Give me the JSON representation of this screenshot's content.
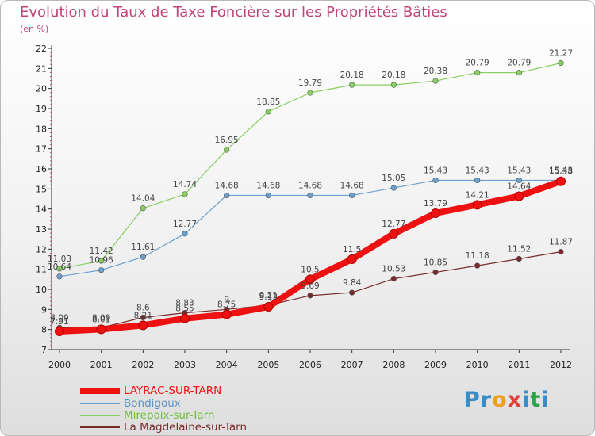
{
  "page": {
    "title": "Evolution du Taux de Taxe Foncière sur les Propriétés Bâties",
    "subtitle": "(en %)"
  },
  "logo": {
    "text": "Proxiti",
    "letter_colors": [
      "#3a8ec8",
      "#3a8ec8",
      "#f0a020",
      "#e0403a",
      "#3a8ec8",
      "#2aa24a",
      "#3a8ec8"
    ]
  },
  "chart_data": {
    "type": "line",
    "title": "Evolution du Taux de Taxe Foncière sur les Propriétés Bâties",
    "ylabel": "(en %)",
    "xlabel": "",
    "categories": [
      "2000",
      "2001",
      "2002",
      "2003",
      "2004",
      "2005",
      "2006",
      "2007",
      "2008",
      "2009",
      "2010",
      "2011",
      "2012"
    ],
    "ylim": [
      7,
      22
    ],
    "yticks": [
      7,
      8,
      9,
      10,
      11,
      12,
      13,
      14,
      15,
      16,
      17,
      18,
      19,
      20,
      21,
      22
    ],
    "grid": false,
    "series": [
      {
        "name": "La Magdelaine-sur-Tarn",
        "color": "#7a2a2a",
        "values": [
          8.09,
          8.09,
          8.6,
          8.83,
          9.0,
          9.21,
          9.69,
          9.84,
          10.53,
          10.85,
          11.18,
          11.52,
          11.87
        ],
        "labels": [
          "8.09",
          "8.09",
          "8.6",
          "8.83",
          "9",
          "9.21",
          "9.69",
          "9.84",
          "10.53",
          "10.85",
          "11.18",
          "11.52",
          "11.87"
        ]
      },
      {
        "name": "Mirepoix-sur-Tarn",
        "color": "#88d060",
        "values": [
          11.03,
          11.42,
          14.04,
          14.74,
          16.95,
          18.85,
          19.79,
          20.18,
          20.18,
          20.38,
          20.79,
          20.79,
          21.27
        ],
        "labels": [
          "11.03",
          "11.42",
          "14.04",
          "14.74",
          "16.95",
          "18.85",
          "19.79",
          "20.18",
          "20.18",
          "20.38",
          "20.79",
          "20.79",
          "21.27"
        ]
      },
      {
        "name": "Bondigoux",
        "color": "#6aa0d0",
        "values": [
          10.64,
          10.96,
          11.61,
          12.77,
          14.68,
          14.68,
          14.68,
          14.68,
          15.05,
          15.43,
          15.43,
          15.43,
          15.43
        ],
        "labels": [
          "10.64",
          "10.96",
          "11.61",
          "12.77",
          "14.68",
          "14.68",
          "14.68",
          "14.68",
          "15.05",
          "15.43",
          "15.43",
          "15.43",
          "15.43"
        ]
      },
      {
        "name": "LAYRAC-SUR-TARN",
        "color": "#ee1111",
        "values": [
          7.91,
          8.01,
          8.21,
          8.55,
          8.75,
          9.13,
          10.5,
          11.5,
          12.77,
          13.79,
          14.21,
          14.64,
          15.38
        ],
        "labels": [
          "7.91",
          "8.01",
          "8.21",
          "8.55",
          "8.75",
          "9.13",
          "10.5",
          "11.5",
          "12.77",
          "13.79",
          "14.21",
          "14.64",
          "15.38"
        ]
      }
    ],
    "legend": {
      "position": "bottom-left",
      "entries": [
        {
          "label": "LAYRAC-SUR-TARN",
          "color": "#ee1111"
        },
        {
          "label": "Bondigoux",
          "color": "#6aa0d0"
        },
        {
          "label": "Mirepoix-sur-Tarn",
          "color": "#88d060"
        },
        {
          "label": "La Magdelaine-sur-Tarn",
          "color": "#7a2a2a"
        }
      ]
    }
  }
}
